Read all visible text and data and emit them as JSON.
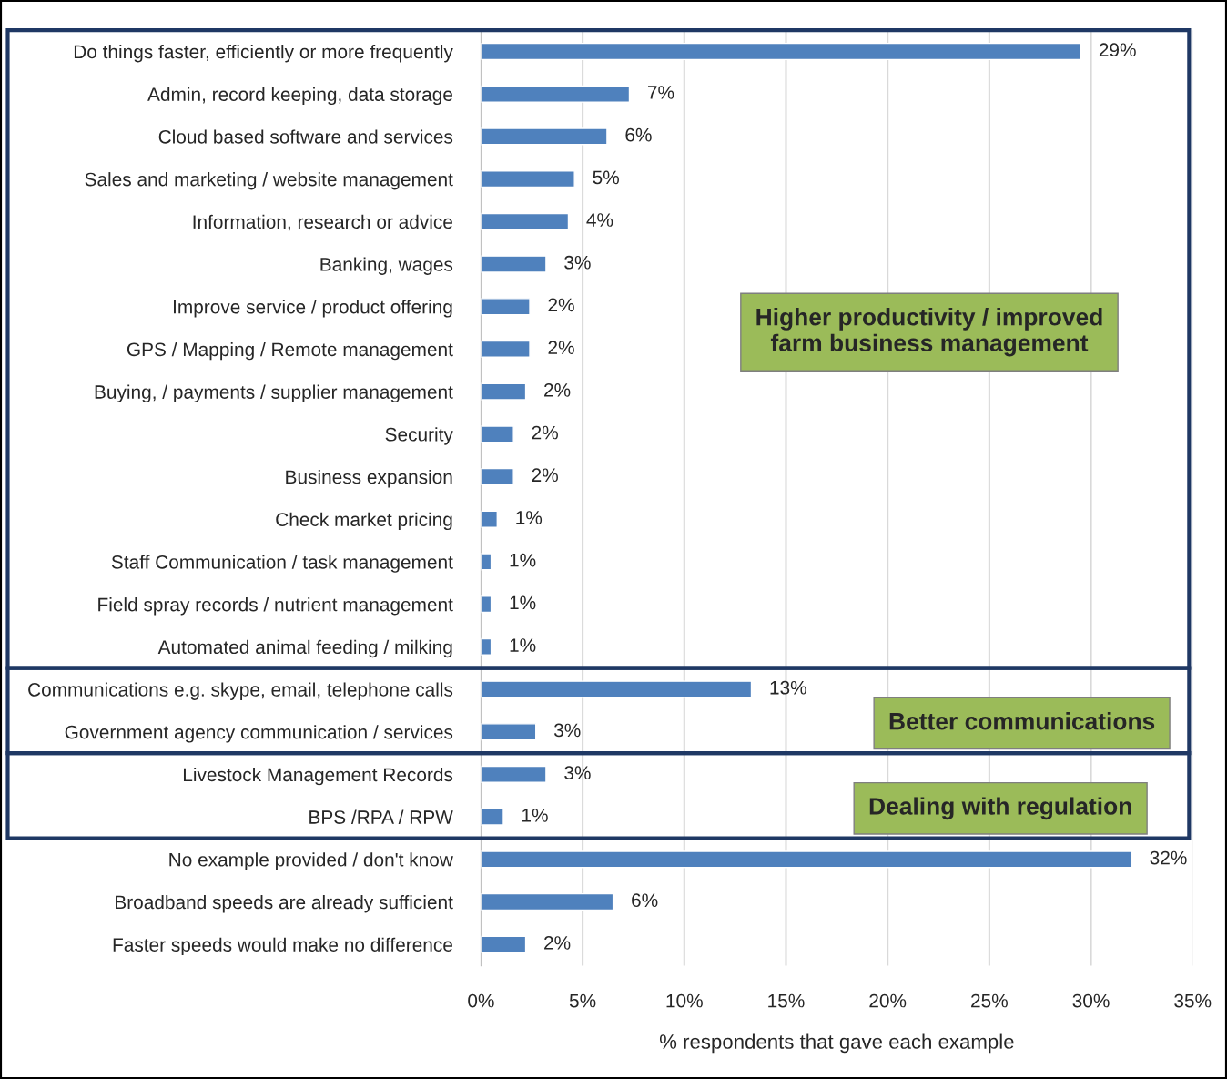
{
  "chart_data": {
    "type": "bar",
    "orientation": "horizontal",
    "xlabel": "% respondents that gave each example",
    "categories": [
      "Do things faster, efficiently or more frequently",
      "Admin, record keeping, data storage",
      "Cloud based software and services",
      "Sales and marketing / website management",
      "Information, research or advice",
      "Banking, wages",
      "Improve service / product offering",
      "GPS / Mapping / Remote management",
      "Buying, / payments / supplier management",
      "Security",
      "Business expansion",
      "Check market pricing",
      "Staff Communication / task management",
      "Field spray records / nutrient management",
      "Automated animal feeding / milking",
      "Communications e.g. skype, email, telephone calls",
      "Government agency communication / services",
      "Livestock Management Records",
      "BPS /RPA / RPW",
      "No example provided / don't know",
      "Broadband speeds are already sufficient",
      "Faster speeds would make no difference"
    ],
    "values": [
      29.5,
      7.3,
      6.2,
      4.6,
      4.3,
      3.2,
      2.4,
      2.4,
      2.2,
      1.6,
      1.6,
      0.8,
      0.5,
      0.5,
      0.5,
      13.3,
      2.7,
      3.2,
      1.1,
      32.0,
      6.5,
      2.2
    ],
    "value_labels": [
      "29%",
      "7%",
      "6%",
      "5%",
      "4%",
      "3%",
      "2%",
      "2%",
      "2%",
      "2%",
      "2%",
      "1%",
      "1%",
      "1%",
      "1%",
      "13%",
      "3%",
      "3%",
      "1%",
      "32%",
      "6%",
      "2%"
    ],
    "color": "#4f81bd",
    "xlim": [
      0,
      35
    ],
    "xticks": [
      {
        "value": 0,
        "label": "0%"
      },
      {
        "value": 5,
        "label": "5%"
      },
      {
        "value": 10,
        "label": "10%"
      },
      {
        "value": 15,
        "label": "15%"
      },
      {
        "value": 20,
        "label": "20%"
      },
      {
        "value": 25,
        "label": "25%"
      },
      {
        "value": 30,
        "label": "30%"
      },
      {
        "value": 35,
        "label": "35%"
      }
    ],
    "grid": "x",
    "annotations": [
      "Higher productivity / improved\nfarm business management",
      "Better communications",
      "Dealing with regulation"
    ]
  }
}
